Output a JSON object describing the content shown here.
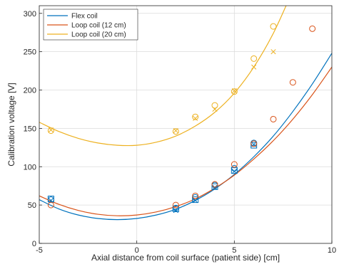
{
  "chart_data": {
    "type": "scatter",
    "xlabel": "Axial distance from coil surface (patient side) [cm]",
    "ylabel": "Calibration voltage [V]",
    "xlim": [
      -5,
      10
    ],
    "ylim": [
      0,
      310
    ],
    "xticks": [
      -5,
      0,
      5,
      10
    ],
    "yticks": [
      0,
      50,
      100,
      150,
      200,
      250,
      300
    ],
    "grid": true,
    "legend_position": "top-left",
    "series": [
      {
        "name": "Flex coil",
        "color": "#0072BD",
        "markers": [
          {
            "shape": "square",
            "points": [
              [
                -4.4,
                58
              ],
              [
                2,
                45
              ],
              [
                3,
                57
              ],
              [
                4,
                74
              ],
              [
                5,
                95
              ],
              [
                6,
                128
              ]
            ]
          },
          {
            "shape": "circle",
            "points": [
              [
                -4.4,
                57
              ],
              [
                2,
                46
              ],
              [
                3,
                60
              ],
              [
                4,
                76
              ],
              [
                5,
                98
              ],
              [
                6,
                131
              ]
            ]
          },
          {
            "shape": "cross",
            "points": [
              [
                -4.4,
                56
              ],
              [
                2,
                43
              ],
              [
                3,
                56
              ],
              [
                4,
                73
              ],
              [
                5,
                94
              ],
              [
                6,
                129
              ]
            ]
          }
        ],
        "fit": [
          [
            -5,
            57
          ],
          [
            -4,
            45
          ],
          [
            -3,
            37
          ],
          [
            -2,
            32.5
          ],
          [
            -1,
            31
          ],
          [
            0,
            32.5
          ],
          [
            1,
            37
          ],
          [
            2,
            44.5
          ],
          [
            3,
            56
          ],
          [
            4,
            71
          ],
          [
            5,
            90
          ],
          [
            6,
            113
          ],
          [
            7,
            140
          ],
          [
            8,
            172
          ],
          [
            9,
            208
          ],
          [
            10,
            248
          ]
        ]
      },
      {
        "name": "Loop coil (12 cm)",
        "color": "#D95319",
        "markers": [
          {
            "shape": "circle",
            "points": [
              [
                -4.4,
                50
              ],
              [
                2,
                50
              ],
              [
                3,
                62
              ],
              [
                4,
                77
              ],
              [
                5,
                103
              ],
              [
                6,
                130
              ],
              [
                7,
                162
              ],
              [
                8,
                210
              ],
              [
                9,
                280
              ]
            ]
          }
        ],
        "fit": [
          [
            -5,
            62
          ],
          [
            -4,
            51
          ],
          [
            -3,
            43
          ],
          [
            -2,
            38
          ],
          [
            -1,
            36
          ],
          [
            0,
            37
          ],
          [
            1,
            41
          ],
          [
            2,
            48
          ],
          [
            3,
            58
          ],
          [
            4,
            72
          ],
          [
            5,
            89
          ],
          [
            6,
            110
          ],
          [
            7,
            134
          ],
          [
            8,
            162
          ],
          [
            9,
            194
          ],
          [
            10,
            230
          ]
        ]
      },
      {
        "name": "Loop coil (20 cm)",
        "color": "#EDB120",
        "markers": [
          {
            "shape": "circle",
            "points": [
              [
                -4.4,
                147
              ],
              [
                2,
                146
              ],
              [
                3,
                165
              ],
              [
                4,
                180
              ],
              [
                5,
                198
              ],
              [
                6,
                241
              ],
              [
                7,
                283
              ]
            ]
          },
          {
            "shape": "cross",
            "points": [
              [
                -4.4,
                148
              ],
              [
                2,
                147
              ],
              [
                3,
                163
              ],
              [
                4,
                175
              ],
              [
                5,
                199
              ],
              [
                6,
                230
              ],
              [
                7,
                250
              ]
            ]
          }
        ],
        "fit": [
          [
            -5,
            158
          ],
          [
            -4,
            146
          ],
          [
            -3,
            137
          ],
          [
            -2,
            131
          ],
          [
            -1,
            128
          ],
          [
            0,
            128
          ],
          [
            1,
            132
          ],
          [
            2,
            140
          ],
          [
            3,
            153
          ],
          [
            4,
            171
          ],
          [
            5,
            196
          ],
          [
            6,
            230
          ],
          [
            7,
            274
          ],
          [
            8,
            330
          ]
        ]
      }
    ]
  }
}
